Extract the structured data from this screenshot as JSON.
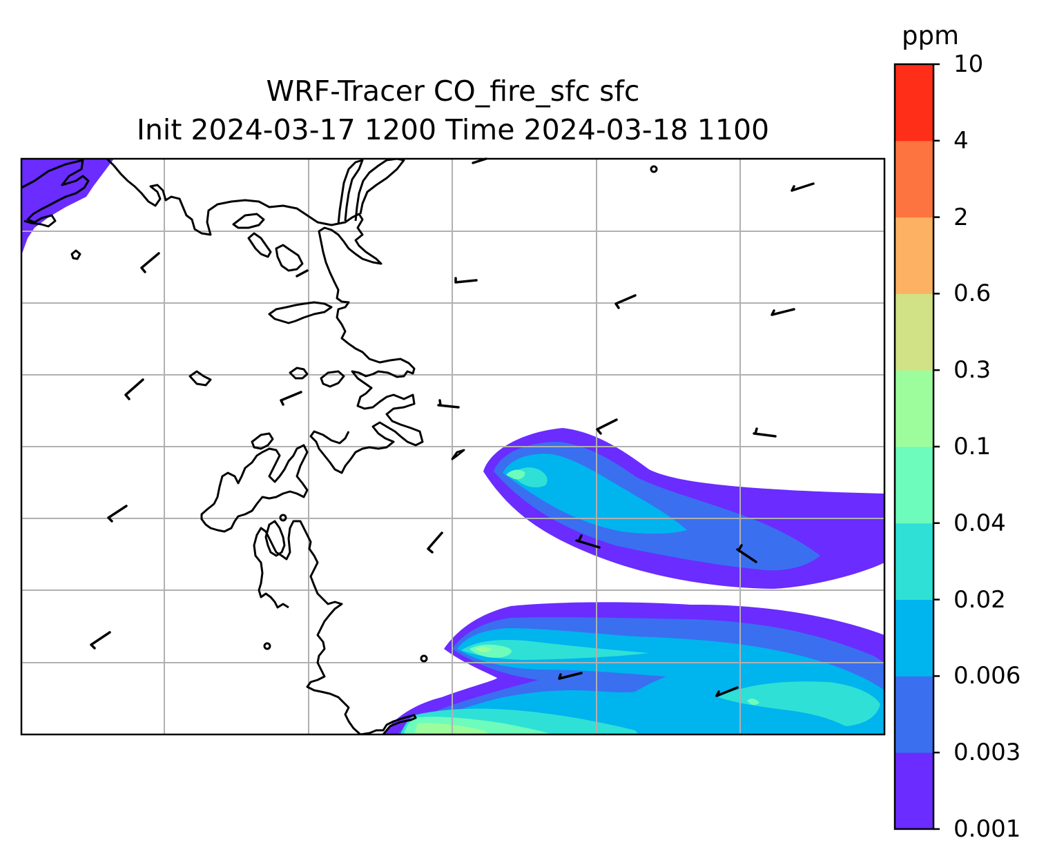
{
  "title": {
    "line1": "WRF-Tracer CO_fire_sfc sfc",
    "line2": "Init 2024-03-17 1200 Time 2024-03-18 1100"
  },
  "colorbar": {
    "unit": "ppm",
    "ticks": [
      "0.001",
      "0.003",
      "0.006",
      "0.02",
      "0.04",
      "0.1",
      "0.3",
      "0.6",
      "2",
      "4",
      "10"
    ],
    "colors": [
      "#6a2cff",
      "#3a6ff0",
      "#00b4ee",
      "#2fe0d6",
      "#6dfcbc",
      "#9dfd9d",
      "#d1e186",
      "#fdb162",
      "#fe7440",
      "#fe2e18"
    ]
  },
  "map": {
    "gridlines": true,
    "gridline_color": "#b0b0b0",
    "coastline_color": "#000000",
    "wind_barbs": true
  }
}
